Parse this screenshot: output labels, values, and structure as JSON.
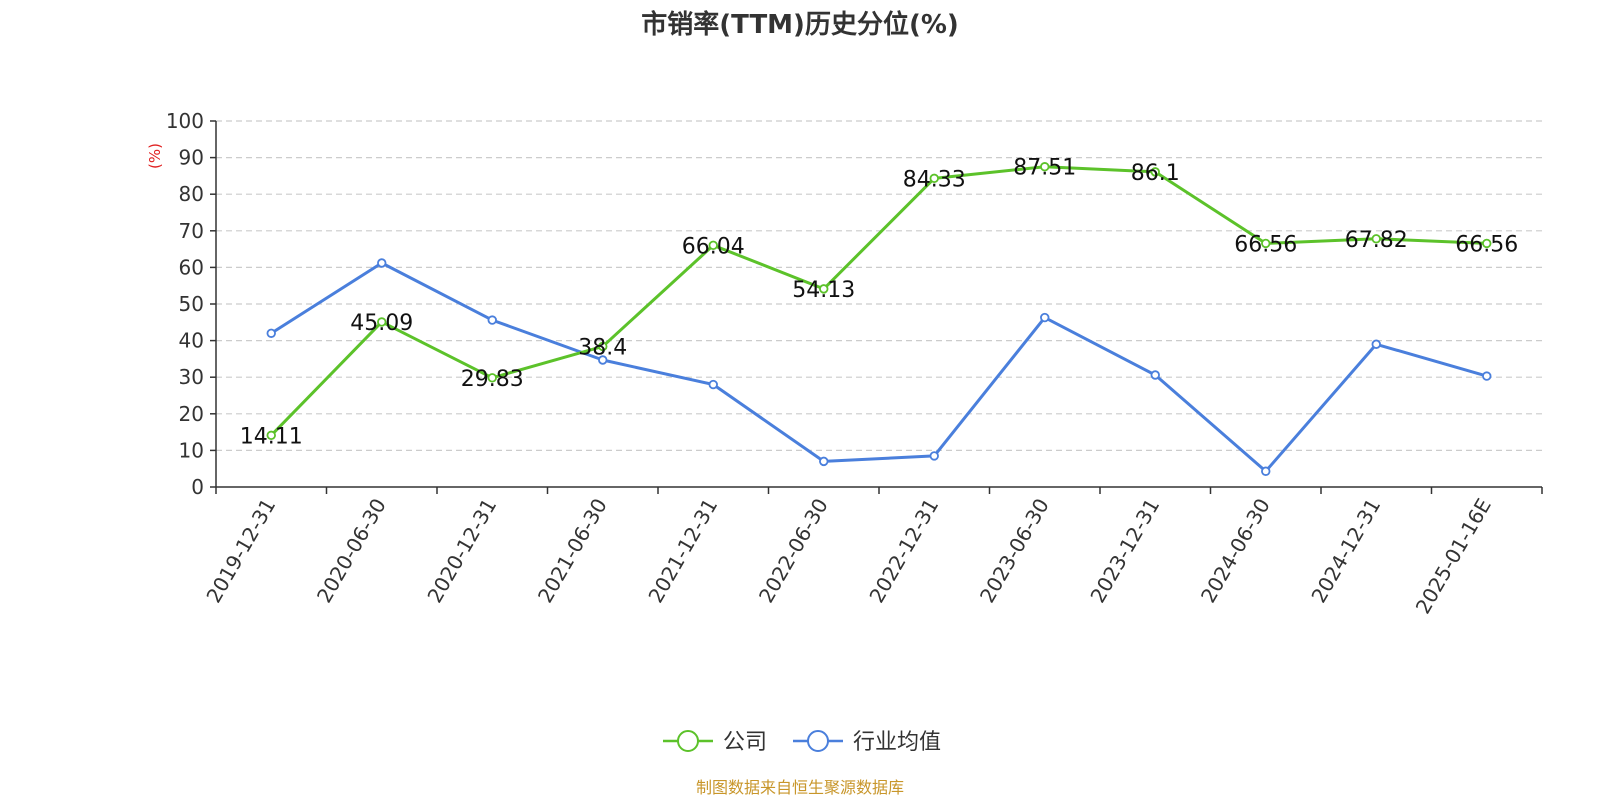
{
  "chart_data": {
    "type": "line",
    "title": "市销率(TTM)历史分位(%)",
    "ylabel": "(%)",
    "ylim": [
      0,
      100
    ],
    "yticks": [
      0,
      10,
      20,
      30,
      40,
      50,
      60,
      70,
      80,
      90,
      100
    ],
    "grid": true,
    "legend_position": "bottom",
    "categories": [
      "2019-12-31",
      "2020-06-30",
      "2020-12-31",
      "2021-06-30",
      "2021-12-31",
      "2022-06-30",
      "2022-12-31",
      "2023-06-30",
      "2023-12-31",
      "2024-06-30",
      "2024-12-31",
      "2025-01-16E"
    ],
    "series": [
      {
        "name": "公司",
        "color": "#5cc22a",
        "values": [
          14.11,
          45.09,
          29.83,
          38.4,
          66.04,
          54.13,
          84.33,
          87.51,
          86.1,
          66.56,
          67.82,
          66.56
        ],
        "labels": [
          "14.11",
          "45.09",
          "29.83",
          "38.4",
          "66.04",
          "54.13",
          "84.33",
          "87.51",
          "86.1",
          "66.56",
          "67.82",
          "66.56"
        ]
      },
      {
        "name": "行业均值",
        "color": "#4a7fdc",
        "values": [
          42,
          61.2,
          45.6,
          34.7,
          28,
          7,
          8.5,
          46.3,
          30.6,
          4.3,
          39,
          30.3
        ]
      }
    ],
    "source": "制图数据来自恒生聚源数据库",
    "source_color": "#c8962a",
    "ylabel_color": "#e02020"
  }
}
